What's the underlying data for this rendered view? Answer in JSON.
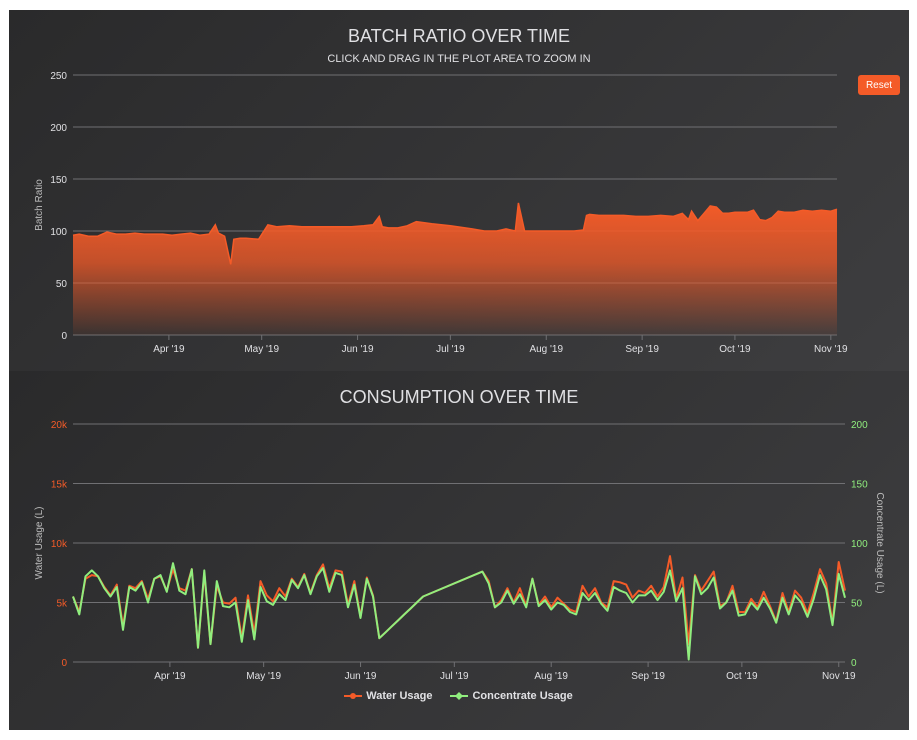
{
  "colors": {
    "water": "#f45b28",
    "concentrate": "#90ee7e",
    "grid": "#707073",
    "axis_text": "#e0e0e3",
    "panel_bg": "#2f2f31"
  },
  "reset_label": "Reset",
  "chart_data": [
    {
      "type": "area",
      "title": "BATCH RATIO OVER TIME",
      "subtitle": "CLICK AND DRAG IN THE PLOT AREA TO ZOOM IN",
      "xlabel": "",
      "ylabel": "Batch Ratio",
      "ylim": [
        0,
        250
      ],
      "yticks": [
        "0",
        "50",
        "100",
        "150",
        "200",
        "250"
      ],
      "xlim": [
        "2019-03-01",
        "2019-11-03"
      ],
      "xticks": [
        "Apr '19",
        "May '19",
        "Jun '19",
        "Jul '19",
        "Aug '19",
        "Sep '19",
        "Oct '19",
        "Nov '19"
      ],
      "xtick_dates": [
        "2019-04-01",
        "2019-05-01",
        "2019-06-01",
        "2019-07-01",
        "2019-08-01",
        "2019-09-01",
        "2019-10-01",
        "2019-11-01"
      ],
      "grid": true,
      "series": [
        {
          "x": [
            "2019-03-01",
            "2019-03-03",
            "2019-03-06",
            "2019-03-09",
            "2019-03-12",
            "2019-03-15",
            "2019-03-18",
            "2019-03-21",
            "2019-03-24",
            "2019-03-27",
            "2019-03-30",
            "2019-04-02",
            "2019-04-05",
            "2019-04-08",
            "2019-04-11",
            "2019-04-14",
            "2019-04-16",
            "2019-04-17",
            "2019-04-19",
            "2019-04-21",
            "2019-04-22",
            "2019-04-24",
            "2019-04-26",
            "2019-04-30",
            "2019-05-03",
            "2019-05-06",
            "2019-05-10",
            "2019-05-14",
            "2019-05-18",
            "2019-05-22",
            "2019-05-26",
            "2019-05-30",
            "2019-06-03",
            "2019-06-06",
            "2019-06-08",
            "2019-06-09",
            "2019-06-11",
            "2019-06-14",
            "2019-06-17",
            "2019-06-20",
            "2019-06-25",
            "2019-07-01",
            "2019-07-08",
            "2019-07-12",
            "2019-07-16",
            "2019-07-19",
            "2019-07-22",
            "2019-07-23",
            "2019-07-25",
            "2019-07-29",
            "2019-08-02",
            "2019-08-06",
            "2019-08-10",
            "2019-08-13",
            "2019-08-14",
            "2019-08-15",
            "2019-08-18",
            "2019-08-22",
            "2019-08-26",
            "2019-08-30",
            "2019-09-03",
            "2019-09-07",
            "2019-09-11",
            "2019-09-14",
            "2019-09-16",
            "2019-09-17",
            "2019-09-19",
            "2019-09-21",
            "2019-09-23",
            "2019-09-25",
            "2019-09-27",
            "2019-09-29",
            "2019-10-01",
            "2019-10-03",
            "2019-10-05",
            "2019-10-07",
            "2019-10-09",
            "2019-10-11",
            "2019-10-13",
            "2019-10-15",
            "2019-10-17",
            "2019-10-20",
            "2019-10-23",
            "2019-10-26",
            "2019-10-29",
            "2019-11-01",
            "2019-11-03"
          ],
          "values": [
            96,
            97,
            95,
            95,
            99,
            97,
            97,
            98,
            97,
            97,
            97,
            96,
            97,
            98,
            96,
            97,
            106,
            98,
            95,
            68,
            92,
            93,
            93,
            92,
            106,
            104,
            105,
            104,
            104,
            104,
            104,
            104,
            105,
            106,
            114,
            104,
            103,
            103,
            105,
            109,
            107,
            105,
            102,
            100,
            100,
            102,
            100,
            127,
            100,
            100,
            100,
            100,
            100,
            101,
            115,
            116,
            115,
            115,
            115,
            114,
            114,
            115,
            114,
            117,
            111,
            119,
            110,
            117,
            124,
            123,
            117,
            117,
            118,
            118,
            118,
            120,
            111,
            110,
            113,
            119,
            118,
            118,
            120,
            119,
            120,
            119,
            121
          ]
        }
      ]
    },
    {
      "type": "line",
      "title": "CONSUMPTION OVER TIME",
      "xlabel": "",
      "ylabel_left": "Water Usage (L)",
      "ylabel_right": "Concentrate Usage (L)",
      "ylim_left": [
        0,
        20000
      ],
      "yticks_left": [
        "0",
        "5k",
        "10k",
        "15k",
        "20k"
      ],
      "ylim_right": [
        0,
        200
      ],
      "yticks_right": [
        "0",
        "50",
        "100",
        "150",
        "200"
      ],
      "xlim": [
        "2019-03-01",
        "2019-11-03"
      ],
      "xticks": [
        "Apr '19",
        "May '19",
        "Jun '19",
        "Jul '19",
        "Aug '19",
        "Sep '19",
        "Oct '19",
        "Nov '19"
      ],
      "xtick_dates": [
        "2019-04-01",
        "2019-05-01",
        "2019-06-01",
        "2019-07-01",
        "2019-08-01",
        "2019-09-01",
        "2019-10-01",
        "2019-11-01"
      ],
      "grid": true,
      "legend": "bottom-center",
      "categories": [
        "2019-03-01",
        "2019-03-03",
        "2019-03-05",
        "2019-03-07",
        "2019-03-09",
        "2019-03-11",
        "2019-03-13",
        "2019-03-15",
        "2019-03-17",
        "2019-03-19",
        "2019-03-21",
        "2019-03-23",
        "2019-03-25",
        "2019-03-27",
        "2019-03-29",
        "2019-03-31",
        "2019-04-02",
        "2019-04-04",
        "2019-04-06",
        "2019-04-08",
        "2019-04-10",
        "2019-04-12",
        "2019-04-14",
        "2019-04-16",
        "2019-04-18",
        "2019-04-20",
        "2019-04-22",
        "2019-04-24",
        "2019-04-26",
        "2019-04-28",
        "2019-04-30",
        "2019-05-02",
        "2019-05-04",
        "2019-05-06",
        "2019-05-08",
        "2019-05-10",
        "2019-05-12",
        "2019-05-14",
        "2019-05-16",
        "2019-05-18",
        "2019-05-20",
        "2019-05-22",
        "2019-05-24",
        "2019-05-26",
        "2019-05-28",
        "2019-05-30",
        "2019-06-01",
        "2019-06-03",
        "2019-06-05",
        "2019-06-07",
        "2019-06-09",
        "2019-06-11",
        "2019-06-13",
        "2019-06-15",
        "2019-06-17",
        "2019-06-19",
        "2019-06-21",
        "2019-07-10",
        "2019-07-12",
        "2019-07-14",
        "2019-07-16",
        "2019-07-18",
        "2019-07-20",
        "2019-07-22",
        "2019-07-24",
        "2019-07-26",
        "2019-07-28",
        "2019-07-30",
        "2019-08-01",
        "2019-08-03",
        "2019-08-05",
        "2019-08-07",
        "2019-08-09",
        "2019-08-11",
        "2019-08-13",
        "2019-08-15",
        "2019-08-17",
        "2019-08-19",
        "2019-08-21",
        "2019-08-23",
        "2019-08-25",
        "2019-08-27",
        "2019-08-29",
        "2019-08-31",
        "2019-09-02",
        "2019-09-04",
        "2019-09-06",
        "2019-09-08",
        "2019-09-10",
        "2019-09-12",
        "2019-09-14",
        "2019-09-16",
        "2019-09-18",
        "2019-09-20",
        "2019-09-22",
        "2019-09-24",
        "2019-09-26",
        "2019-09-28",
        "2019-09-30",
        "2019-10-02",
        "2019-10-04",
        "2019-10-06",
        "2019-10-08",
        "2019-10-10",
        "2019-10-12",
        "2019-10-14",
        "2019-10-16",
        "2019-10-18",
        "2019-10-20",
        "2019-10-22",
        "2019-10-24",
        "2019-10-26",
        "2019-10-28",
        "2019-10-30",
        "2019-11-01",
        "2019-11-03"
      ],
      "series": [
        {
          "name": "Water Usage",
          "axis": "left",
          "values": [
            5500,
            4200,
            7000,
            7300,
            7200,
            6300,
            5600,
            6500,
            3000,
            6400,
            6200,
            6800,
            5300,
            7000,
            7200,
            6000,
            7800,
            6200,
            6000,
            7800,
            1200,
            7500,
            1500,
            6400,
            5000,
            4900,
            5400,
            2000,
            5600,
            2400,
            6800,
            5600,
            5100,
            6200,
            5500,
            7000,
            6300,
            7400,
            5800,
            7300,
            8200,
            6200,
            7700,
            7600,
            4800,
            6800,
            3800,
            7100,
            5600,
            2000,
            2500,
            3000,
            3500,
            4000,
            4500,
            5000,
            5500,
            7600,
            6800,
            4600,
            5200,
            6200,
            5000,
            6200,
            4700,
            7000,
            4800,
            5500,
            4600,
            5400,
            4900,
            4400,
            4200,
            6400,
            5500,
            6200,
            5000,
            4600,
            6800,
            6700,
            6500,
            5400,
            6000,
            5800,
            6400,
            5500,
            6300,
            8900,
            5300,
            7100,
            1500,
            7300,
            6000,
            6800,
            7600,
            4700,
            5000,
            6400,
            4200,
            4200,
            5300,
            4600,
            5900,
            4700,
            3400,
            5800,
            4200,
            6000,
            5400,
            4100,
            5800,
            7800,
            6600,
            3300,
            8400,
            6000
          ]
        },
        {
          "name": "Concentrate Usage",
          "axis": "right",
          "values": [
            55,
            40,
            72,
            77,
            72,
            62,
            55,
            63,
            27,
            63,
            60,
            67,
            50,
            70,
            73,
            59,
            83,
            60,
            57,
            78,
            12,
            77,
            15,
            68,
            47,
            46,
            50,
            17,
            52,
            19,
            63,
            51,
            48,
            57,
            52,
            69,
            62,
            73,
            57,
            72,
            79,
            59,
            75,
            73,
            46,
            65,
            37,
            70,
            55,
            20,
            25,
            30,
            35,
            40,
            45,
            50,
            55,
            76,
            66,
            46,
            50,
            60,
            49,
            57,
            46,
            70,
            47,
            52,
            44,
            50,
            48,
            42,
            40,
            58,
            52,
            58,
            49,
            43,
            63,
            60,
            58,
            50,
            56,
            56,
            60,
            52,
            59,
            77,
            51,
            62,
            2,
            72,
            57,
            62,
            71,
            45,
            50,
            60,
            39,
            40,
            50,
            44,
            54,
            45,
            33,
            54,
            40,
            56,
            50,
            38,
            53,
            73,
            61,
            31,
            74,
            54
          ]
        }
      ]
    }
  ]
}
